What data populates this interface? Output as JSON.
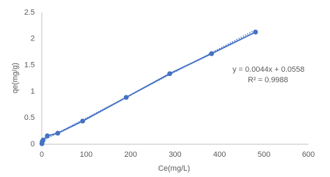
{
  "chart_data": {
    "type": "scatter",
    "x_label": "Ce(mg/L)",
    "y_label": "qe(mg/g)",
    "x": [
      0.3,
      1,
      3,
      12.5,
      36,
      92,
      190,
      288,
      382,
      481
    ],
    "values": [
      0.01,
      0.05,
      0.08,
      0.16,
      0.21,
      0.44,
      0.89,
      1.34,
      1.72,
      2.13
    ],
    "color": "#4472c4",
    "line": true,
    "xlim": [
      0,
      600
    ],
    "xticks": [
      0,
      100,
      200,
      300,
      400,
      500,
      600
    ],
    "ylim": [
      0,
      2.5
    ],
    "yticks": [
      0,
      0.5,
      1,
      1.5,
      2,
      2.5
    ],
    "grid": false,
    "trendline": {
      "slope": 0.0044,
      "intercept": 0.0558,
      "equation": "y = 0.0044x + 0.0558",
      "r2_label": "R² = 0.9988"
    }
  }
}
